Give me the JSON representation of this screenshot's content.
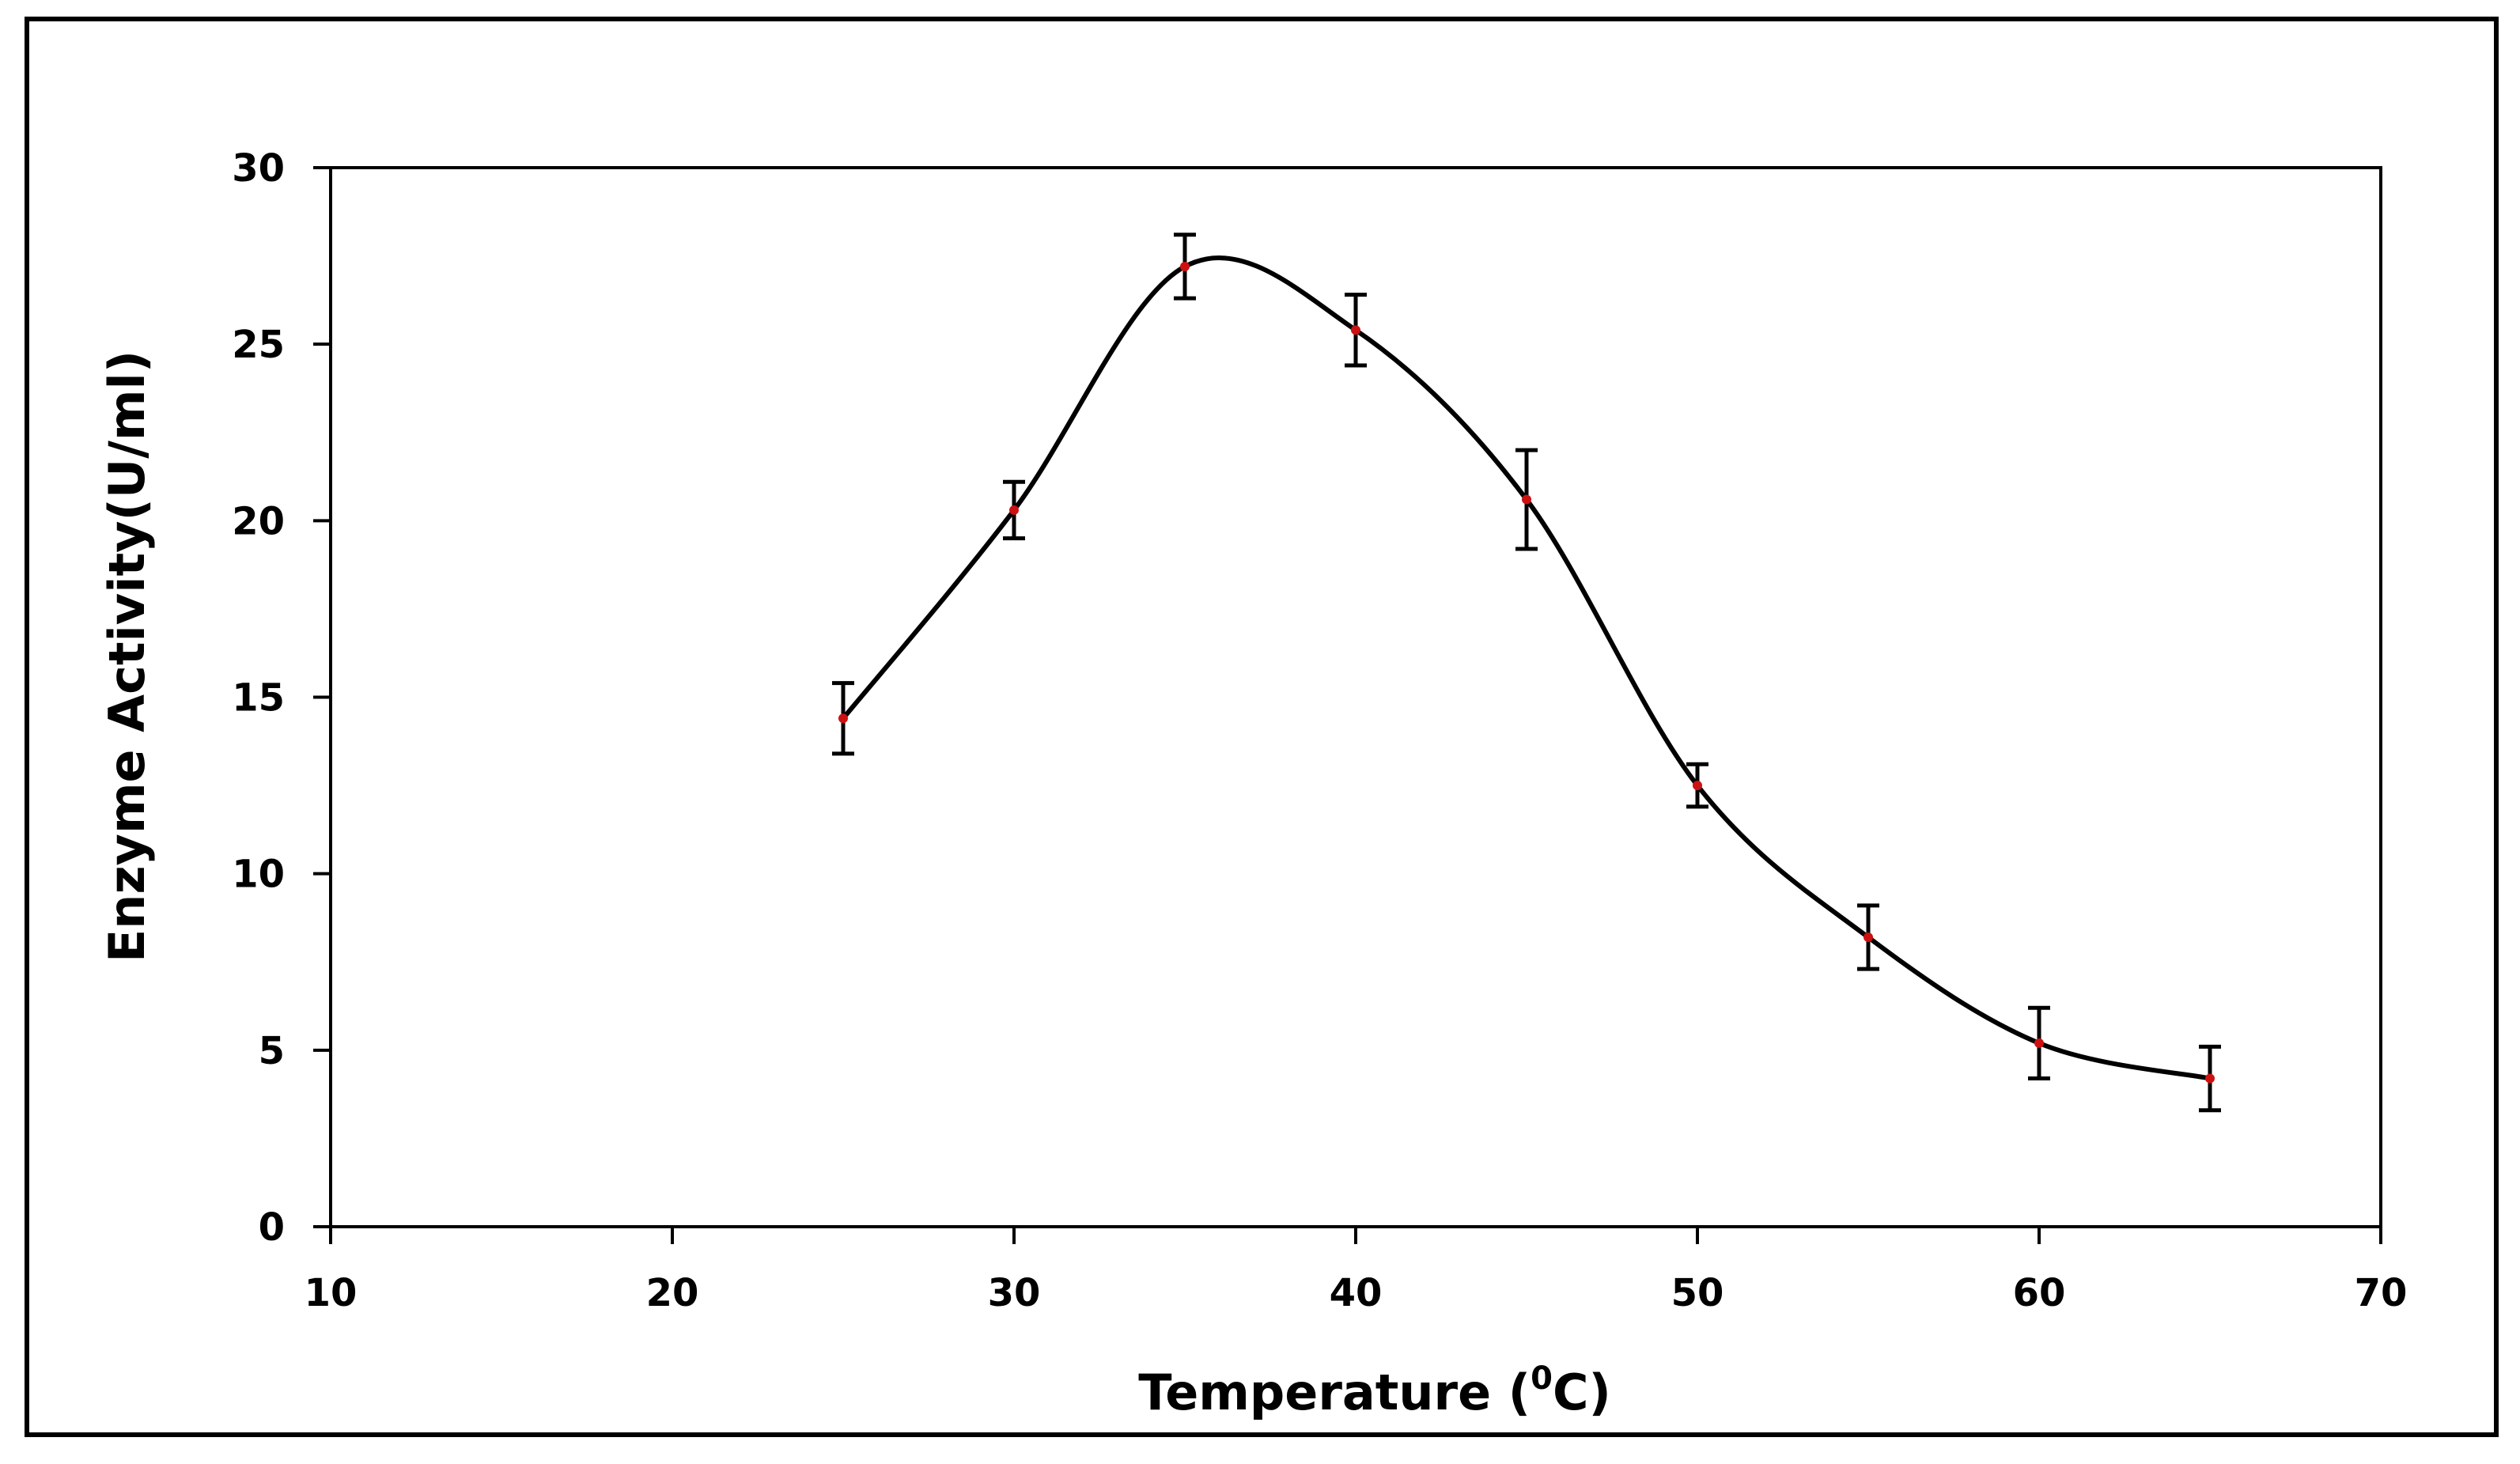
{
  "chart_data": {
    "type": "line",
    "title": "",
    "xlabel_prefix": "Temperature (",
    "xlabel_superscript": "0",
    "xlabel_suffix": "C)",
    "ylabel": "Enzyme Activity(U/ml)",
    "xlim": [
      10,
      70
    ],
    "ylim": [
      0,
      30
    ],
    "x_ticks": [
      10,
      20,
      30,
      40,
      50,
      60,
      70
    ],
    "y_ticks": [
      0,
      5,
      10,
      15,
      20,
      25,
      30
    ],
    "x_tick_labels": [
      "10",
      "20",
      "30",
      "40",
      "50",
      "60",
      "70"
    ],
    "y_tick_labels": [
      "0",
      "5",
      "10",
      "15",
      "20",
      "25",
      "30"
    ],
    "grid": false,
    "smooth": true,
    "series": [
      {
        "name": "Enzyme Activity",
        "x": [
          25,
          30,
          35,
          40,
          45,
          50,
          55,
          60,
          65
        ],
        "y": [
          14.4,
          20.3,
          27.2,
          25.4,
          20.6,
          12.5,
          8.2,
          5.2,
          4.2
        ],
        "error": [
          1.0,
          0.8,
          0.9,
          1.0,
          1.4,
          0.6,
          0.9,
          1.0,
          0.9
        ]
      }
    ]
  },
  "colors": {
    "line": "#000000",
    "marker": "#cc1111",
    "frame": "#000000",
    "background": "#ffffff"
  }
}
